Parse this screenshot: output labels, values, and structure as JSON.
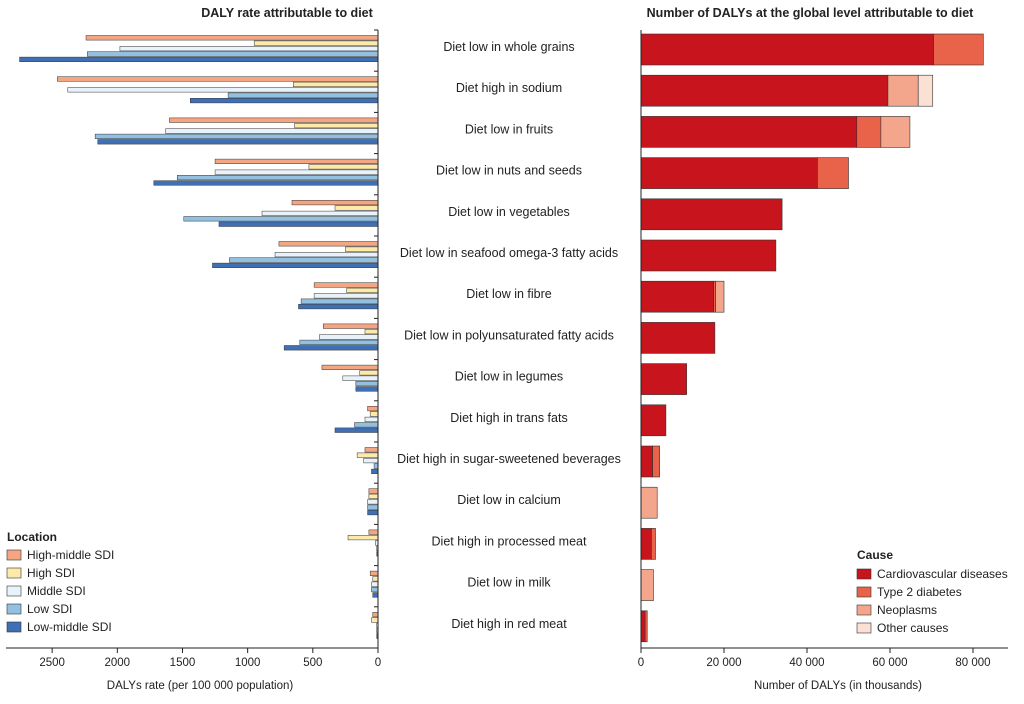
{
  "chart_data": [
    {
      "type": "bar",
      "orientation": "horizontal-reversed",
      "title": "DALY rate attributable to diet",
      "xlabel": "DALYs rate (per 100 000 population)",
      "xlim": [
        0,
        2800
      ],
      "xticks": [
        "2500",
        "2000",
        "1500",
        "1000",
        "500",
        "0"
      ],
      "legend": {
        "title": "Location",
        "placement": "bottom-left",
        "items": [
          {
            "name": "High-middle SDI",
            "color": "#f4a582"
          },
          {
            "name": "High SDI",
            "color": "#fde9a8"
          },
          {
            "name": "Middle SDI",
            "color": "#e8f2fa"
          },
          {
            "name": "Low SDI",
            "color": "#92c0e0"
          },
          {
            "name": "Low-middle SDI",
            "color": "#3f6fb5"
          }
        ]
      },
      "categories": [
        "Diet low in whole grains",
        "Diet high in sodium",
        "Diet low in fruits",
        "Diet low in nuts and seeds",
        "Diet low in vegetables",
        "Diet low in seafood omega-3 fatty acids",
        "Diet low in fibre",
        "Diet low in polyunsaturated fatty acids",
        "Diet low in legumes",
        "Diet high in trans fats",
        "Diet high in sugar-sweetened beverages",
        "Diet low in calcium",
        "Diet high in processed meat",
        "Diet low in milk",
        "Diet high in red meat"
      ],
      "series": [
        {
          "name": "High-middle SDI",
          "values": [
            2240,
            2460,
            1600,
            1250,
            660,
            760,
            490,
            420,
            430,
            80,
            100,
            70,
            70,
            60,
            40
          ]
        },
        {
          "name": "High SDI",
          "values": [
            950,
            650,
            640,
            530,
            330,
            250,
            240,
            100,
            140,
            60,
            160,
            70,
            230,
            40,
            50
          ]
        },
        {
          "name": "Middle SDI",
          "values": [
            1980,
            2380,
            1630,
            1250,
            890,
            790,
            490,
            450,
            270,
            100,
            110,
            80,
            20,
            50,
            10
          ]
        },
        {
          "name": "Low SDI",
          "values": [
            2230,
            1150,
            2170,
            1540,
            1490,
            1140,
            590,
            600,
            170,
            180,
            30,
            80,
            10,
            50,
            10
          ]
        },
        {
          "name": "Low-middle SDI",
          "values": [
            2750,
            1440,
            2150,
            1720,
            1220,
            1270,
            610,
            720,
            170,
            330,
            50,
            80,
            10,
            40,
            10
          ]
        }
      ]
    },
    {
      "type": "bar",
      "orientation": "horizontal-stacked",
      "title": "Number of DALYs at the global level attributable to diet",
      "xlabel": "Number of DALYs (in thousands)",
      "xlim": [
        0,
        88000
      ],
      "xticks": [
        0,
        20000,
        40000,
        60000,
        80000
      ],
      "xtick_labels": [
        "0",
        "20 000",
        "40 000",
        "60 000",
        "80 000"
      ],
      "legend": {
        "title": "Cause",
        "placement": "bottom-right",
        "items": [
          {
            "name": "Cardiovascular diseases",
            "color": "#c8141c"
          },
          {
            "name": "Type 2 diabetes",
            "color": "#e8634a"
          },
          {
            "name": "Neoplasms",
            "color": "#f3a68c"
          },
          {
            "name": "Other causes",
            "color": "#fbe0d4"
          }
        ]
      },
      "series": [
        {
          "name": "Cardiovascular diseases",
          "values": [
            70500,
            59500,
            52000,
            42500,
            34000,
            32500,
            17500,
            17800,
            11000,
            6000,
            2800,
            0,
            2500,
            0,
            1000
          ]
        },
        {
          "name": "Type 2 diabetes",
          "values": [
            12000,
            0,
            5800,
            7500,
            0,
            0,
            500,
            0,
            0,
            0,
            1700,
            0,
            1000,
            0,
            500
          ]
        },
        {
          "name": "Neoplasms",
          "values": [
            0,
            7300,
            7000,
            0,
            0,
            0,
            2000,
            0,
            0,
            0,
            0,
            3900,
            0,
            3000,
            0
          ]
        },
        {
          "name": "Other causes",
          "values": [
            0,
            3500,
            0,
            0,
            0,
            0,
            0,
            0,
            0,
            0,
            0,
            0,
            0,
            0,
            0
          ]
        }
      ]
    }
  ]
}
